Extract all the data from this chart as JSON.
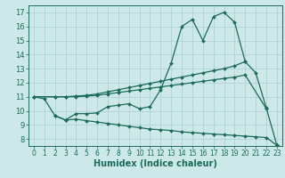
{
  "bg_color": "#cde8e8",
  "grid_color": "#aacfcf",
  "line_color": "#1a6b5a",
  "xlabel": "Humidex (Indice chaleur)",
  "xlabel_fontsize": 7,
  "tick_fontsize": 6,
  "xlim": [
    -0.5,
    23.5
  ],
  "ylim": [
    7.5,
    17.5
  ],
  "xticks": [
    0,
    1,
    2,
    3,
    4,
    5,
    6,
    7,
    8,
    9,
    10,
    11,
    12,
    13,
    14,
    15,
    16,
    17,
    18,
    19,
    20,
    21,
    22,
    23
  ],
  "yticks": [
    8,
    9,
    10,
    11,
    12,
    13,
    14,
    15,
    16,
    17
  ],
  "line1_x": [
    0,
    1,
    2,
    3,
    4,
    5,
    6,
    7,
    8,
    9,
    10,
    11,
    12,
    13,
    14,
    15,
    16,
    17,
    18,
    19,
    20,
    21,
    22,
    23
  ],
  "line1_y": [
    11.0,
    10.85,
    9.65,
    9.35,
    9.8,
    9.8,
    9.85,
    10.3,
    10.4,
    10.5,
    10.15,
    10.3,
    11.5,
    13.4,
    16.0,
    16.5,
    15.0,
    16.7,
    17.0,
    16.3,
    13.5,
    12.7,
    10.2,
    7.55
  ],
  "line2_x": [
    0,
    2,
    3,
    4,
    5,
    6,
    7,
    8,
    9,
    10,
    11,
    12,
    13,
    14,
    15,
    16,
    17,
    18,
    19,
    20
  ],
  "line2_y": [
    11.0,
    11.0,
    11.0,
    11.05,
    11.1,
    11.2,
    11.35,
    11.5,
    11.65,
    11.8,
    11.95,
    12.1,
    12.25,
    12.4,
    12.55,
    12.7,
    12.85,
    13.0,
    13.2,
    13.5
  ],
  "line3_x": [
    0,
    2,
    3,
    4,
    5,
    6,
    7,
    8,
    9,
    10,
    11,
    12,
    13,
    14,
    15,
    16,
    17,
    18,
    19,
    20,
    22
  ],
  "line3_y": [
    11.0,
    11.0,
    11.0,
    11.0,
    11.05,
    11.1,
    11.2,
    11.3,
    11.4,
    11.5,
    11.6,
    11.7,
    11.8,
    11.9,
    12.0,
    12.1,
    12.2,
    12.3,
    12.4,
    12.55,
    10.15
  ],
  "line4_x": [
    2,
    3,
    4,
    5,
    6,
    7,
    8,
    9,
    10,
    11,
    12,
    13,
    14,
    15,
    16,
    17,
    18,
    19,
    20,
    21,
    22,
    23
  ],
  "line4_y": [
    9.65,
    9.35,
    9.4,
    9.3,
    9.2,
    9.1,
    9.0,
    8.9,
    8.8,
    8.7,
    8.65,
    8.6,
    8.5,
    8.45,
    8.4,
    8.35,
    8.3,
    8.25,
    8.2,
    8.15,
    8.1,
    7.55
  ]
}
